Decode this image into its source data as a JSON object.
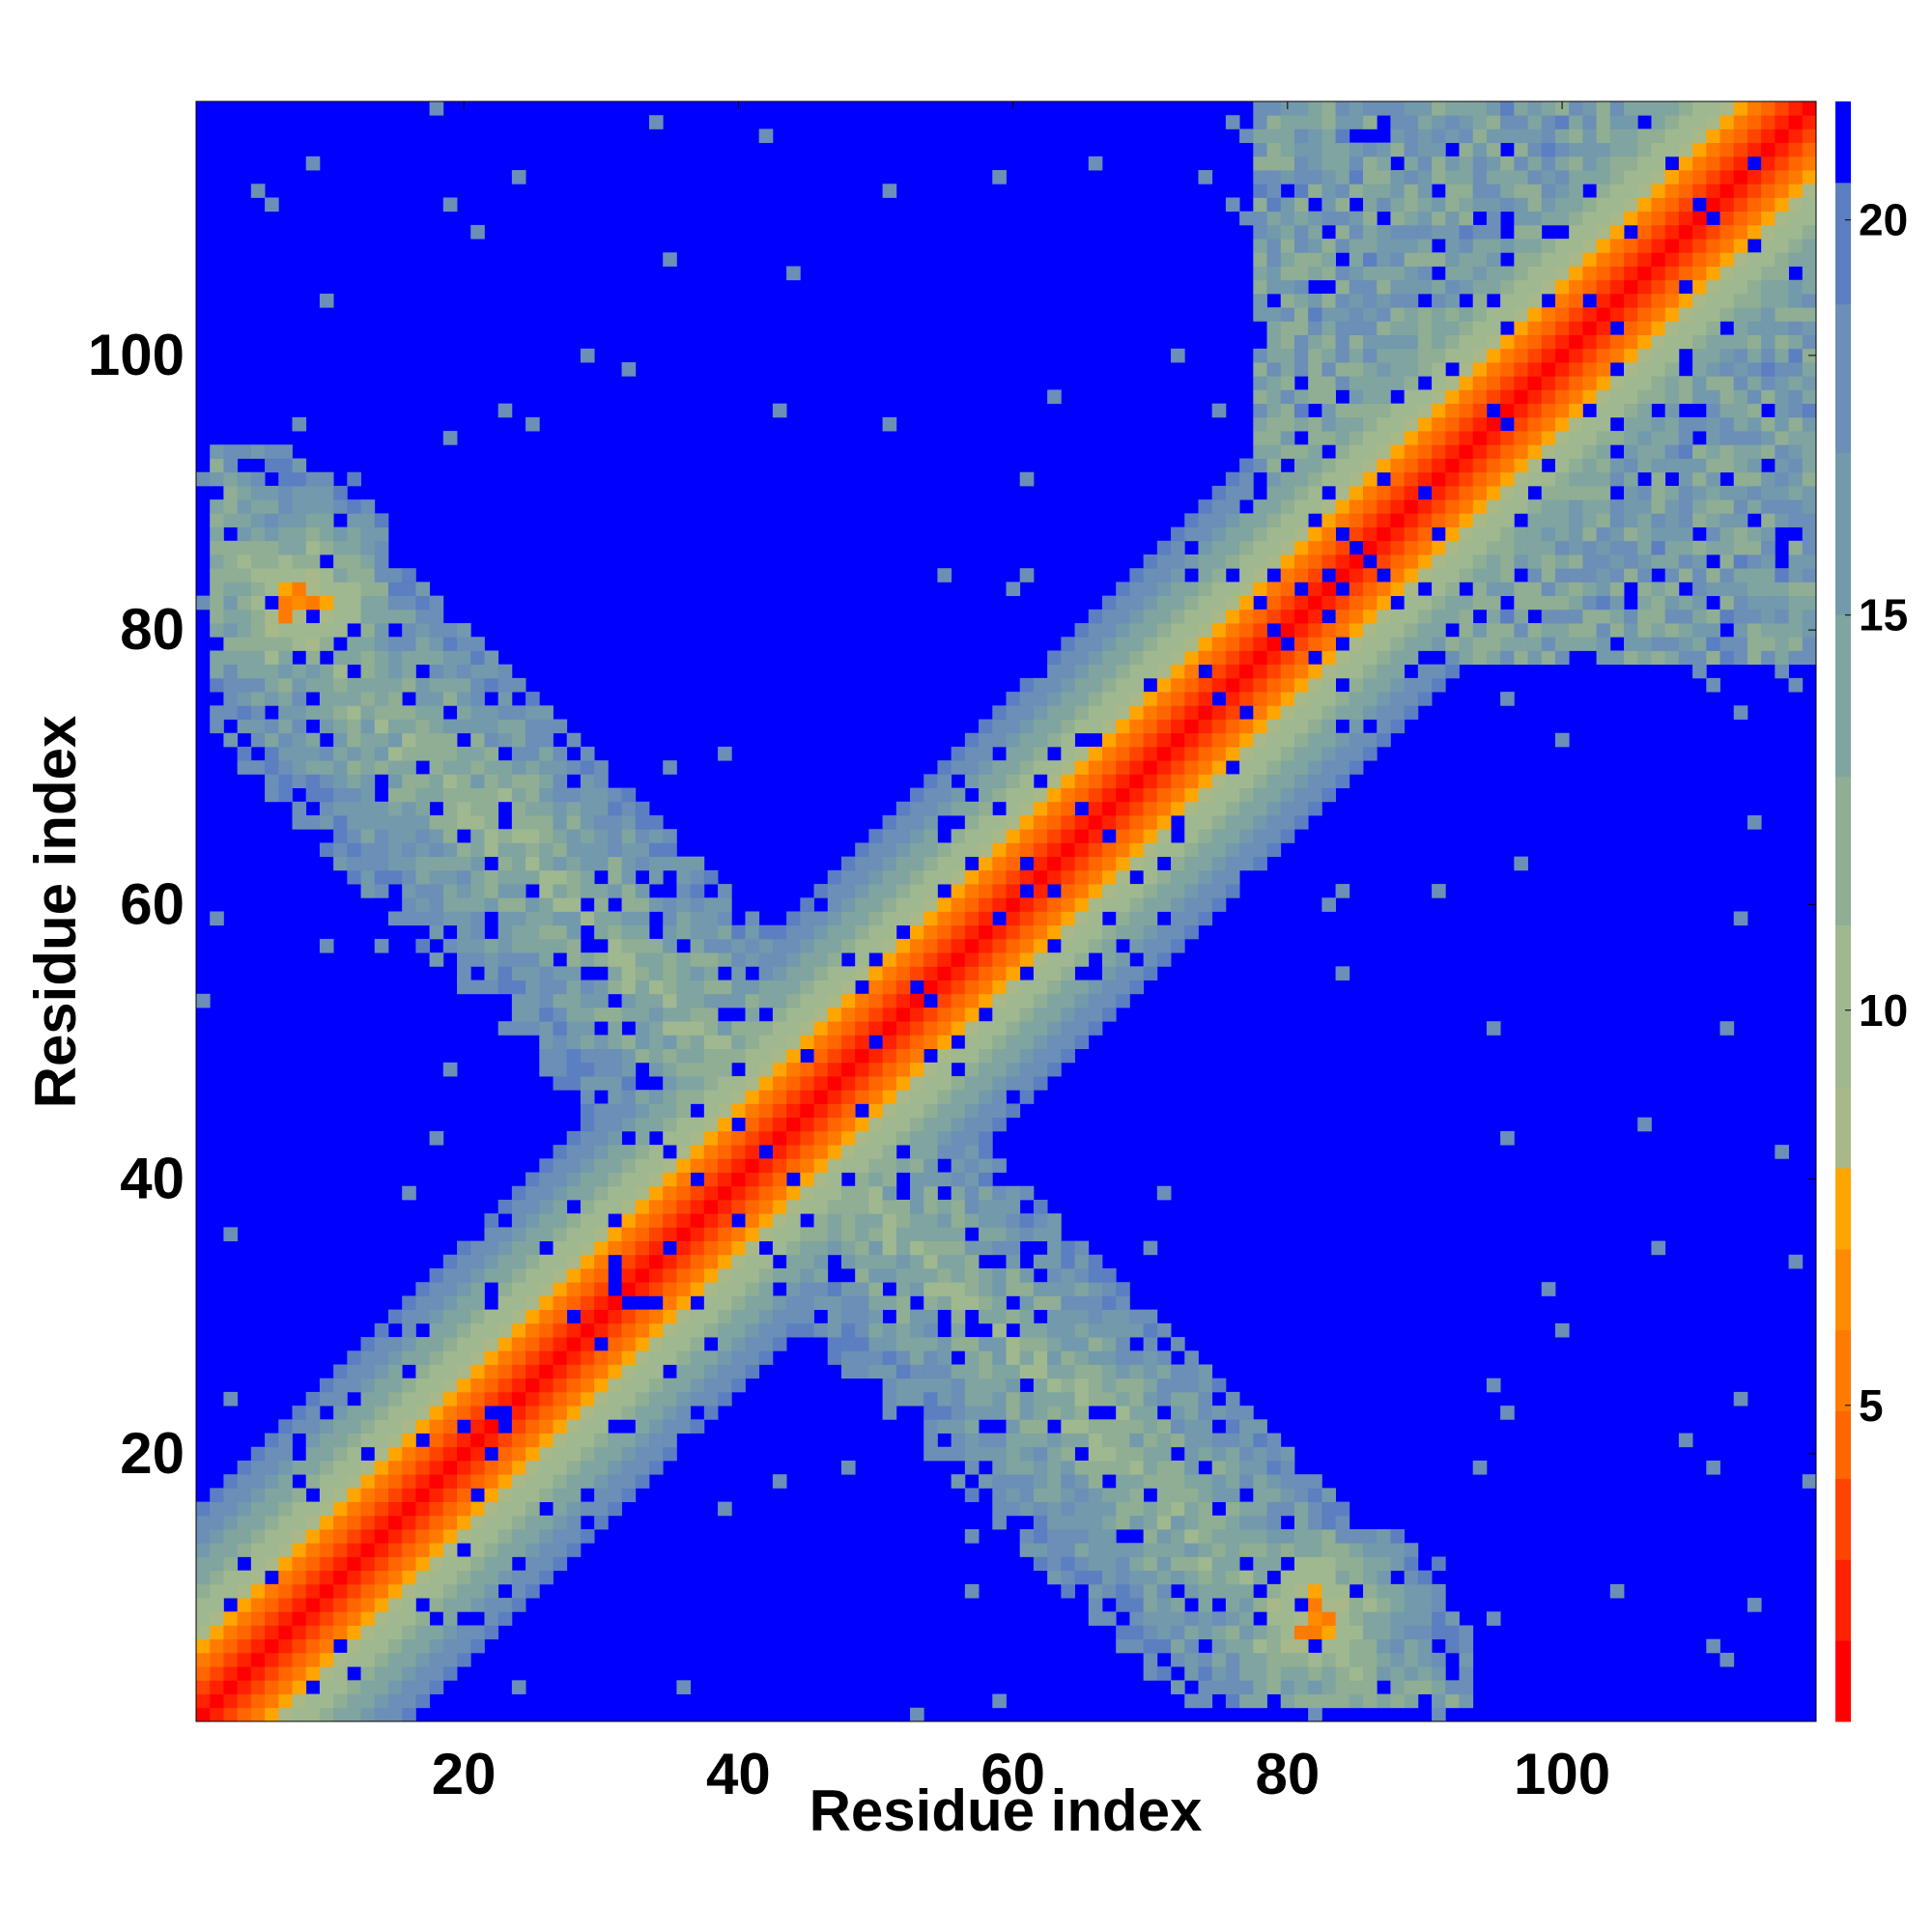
{
  "chart_data": {
    "type": "heatmap",
    "title": "",
    "xlabel": "Residue index",
    "ylabel": "Residue index",
    "n_residues": 118,
    "xlim": [
      1,
      118
    ],
    "ylim": [
      1,
      118
    ],
    "x_ticks": [
      20,
      40,
      60,
      80,
      100
    ],
    "y_ticks": [
      20,
      40,
      60,
      80,
      100
    ],
    "colorbar": {
      "ticks": [
        5,
        10,
        15,
        20
      ],
      "range": [
        1,
        21.5
      ],
      "note_levels": [
        {
          "max": 2,
          "color": "#ff0000"
        },
        {
          "max": 3,
          "color": "#ff2200"
        },
        {
          "max": 4,
          "color": "#ff4400"
        },
        {
          "max": 5,
          "color": "#ff6600"
        },
        {
          "max": 6,
          "color": "#ff7a00"
        },
        {
          "max": 7,
          "color": "#ff8c00"
        },
        {
          "max": 8,
          "color": "#ffa500"
        },
        {
          "max": 9,
          "color": "#a8b888"
        },
        {
          "max": 11,
          "color": "#9fb890"
        },
        {
          "max": 13,
          "color": "#8fae94"
        },
        {
          "max": 15,
          "color": "#80a4a0"
        },
        {
          "max": 17,
          "color": "#7399ac"
        },
        {
          "max": 19,
          "color": "#6b8fb6"
        },
        {
          "max": 20.5,
          "color": "#5b7fc0"
        },
        {
          "max": 99,
          "color": "#0000ff"
        }
      ]
    },
    "regions": [
      {
        "name": "main-diagonal",
        "description": "distance increases from ~1 at |i-j|=0 to ~20 at |i-j|≈14"
      },
      {
        "name": "anti-diagonal-contacts",
        "centers": [
          [
            20,
            70
          ],
          [
            70,
            20
          ],
          [
            30,
            60
          ],
          [
            60,
            30
          ],
          [
            42,
            48
          ],
          [
            48,
            42
          ]
        ]
      },
      {
        "name": "terminal-contacts",
        "centers": [
          [
            8,
            82
          ],
          [
            82,
            8
          ],
          [
            7,
            90
          ],
          [
            90,
            7
          ]
        ]
      },
      {
        "name": "c-terminal-block",
        "centers": [
          [
            100,
            90
          ],
          [
            90,
            100
          ],
          [
            105,
            110
          ],
          [
            110,
            105
          ]
        ]
      }
    ]
  }
}
